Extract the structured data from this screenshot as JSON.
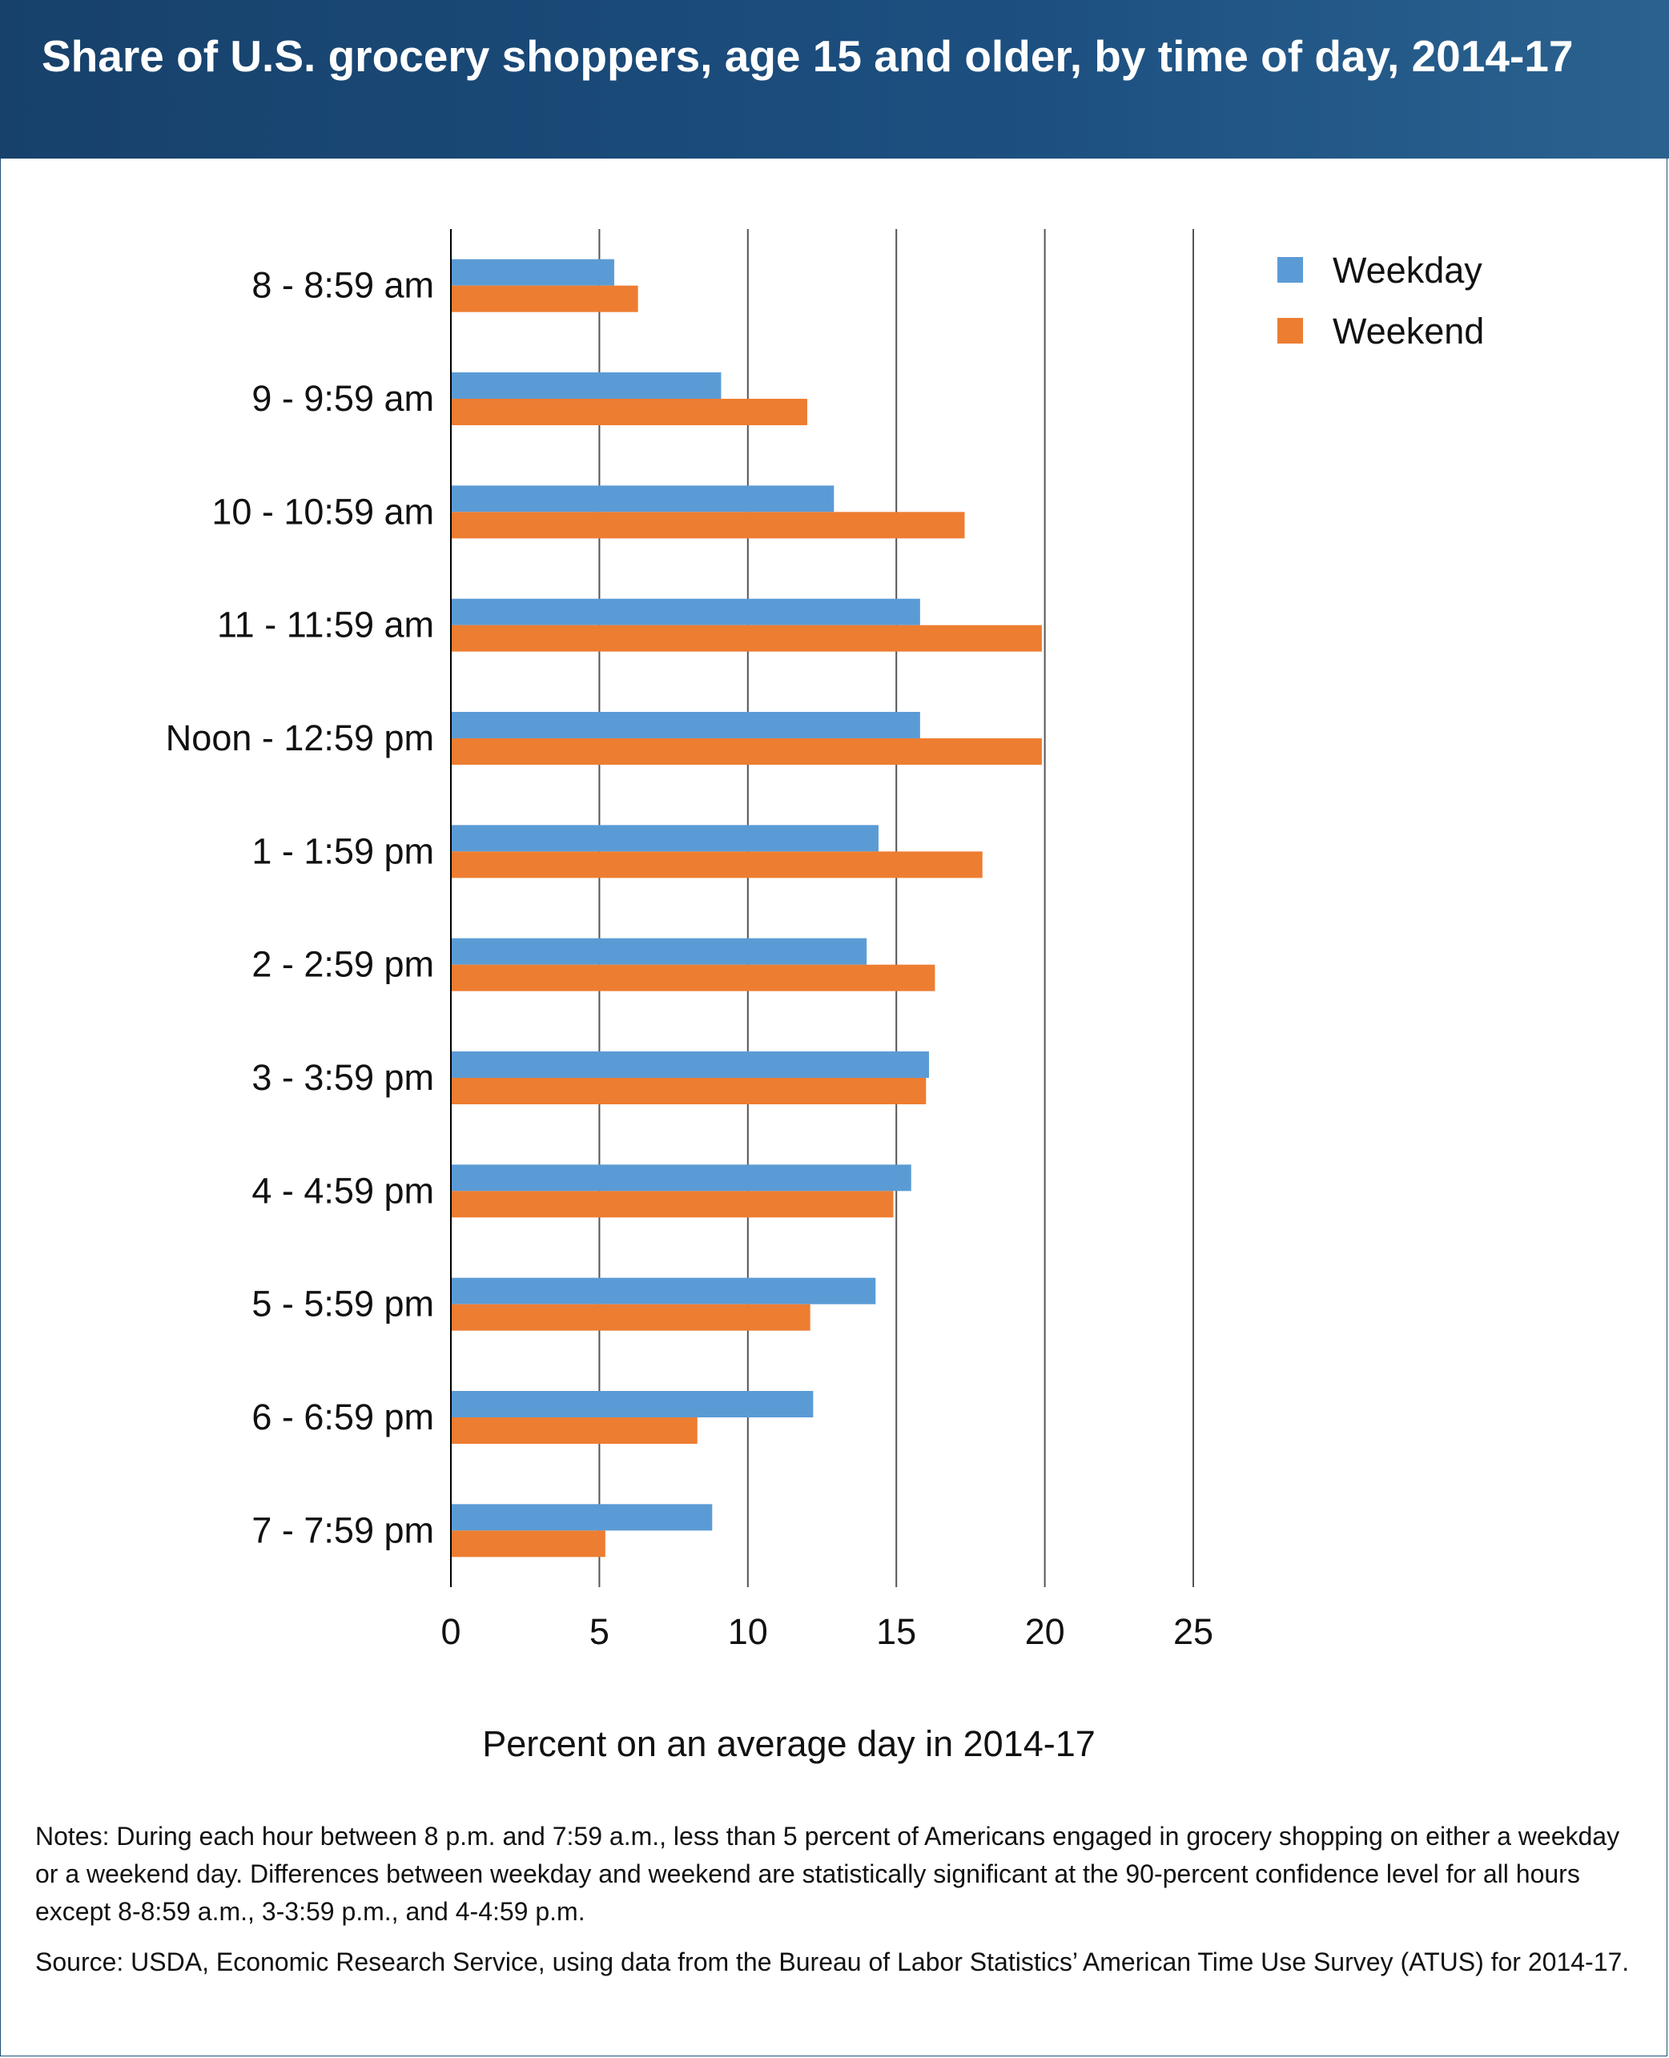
{
  "header": {
    "title": "Share of U.S. grocery shoppers, age 15 and older, by time of day, 2014-17"
  },
  "chart_data": {
    "type": "bar",
    "orientation": "horizontal",
    "title": "Share of U.S. grocery shoppers, age 15 and older, by time of day, 2014-17",
    "xlabel": "Percent on an average day in 2014-17",
    "ylabel": "",
    "xlim": [
      0,
      25
    ],
    "xticks": [
      0,
      5,
      10,
      15,
      20,
      25
    ],
    "grid": "vertical",
    "legend_position": "top-right",
    "categories": [
      "8 - 8:59 am",
      "9 - 9:59 am",
      "10 - 10:59 am",
      "11 - 11:59 am",
      "Noon - 12:59 pm",
      "1 - 1:59 pm",
      "2 - 2:59 pm",
      "3 - 3:59 pm",
      "4 - 4:59 pm",
      "5 - 5:59 pm",
      "6 - 6:59 pm",
      "7 - 7:59 pm"
    ],
    "series": [
      {
        "name": "Weekday",
        "color": "#5b9bd5",
        "values": [
          5.5,
          9.1,
          12.9,
          15.8,
          15.8,
          14.4,
          14.0,
          16.1,
          15.5,
          14.3,
          12.2,
          8.8
        ]
      },
      {
        "name": "Weekend",
        "color": "#ed7d31",
        "values": [
          6.3,
          12.0,
          17.3,
          19.9,
          19.9,
          17.9,
          16.3,
          16.0,
          14.9,
          12.1,
          8.3,
          5.2
        ]
      }
    ]
  },
  "notes": {
    "note": "Notes: During each hour between 8 p.m. and 7:59 a.m., less than 5 percent of Americans engaged in grocery shopping on either a weekday or a weekend day. Differences between weekday and weekend are statistically significant at the 90-percent confidence level for all hours except 8-8:59 a.m., 3-3:59 p.m., and 4-4:59 p.m.",
    "source": "Source: USDA, Economic Research Service, using data from the Bureau of Labor Statistics’ American Time Use Survey (ATUS) for 2014-17."
  }
}
